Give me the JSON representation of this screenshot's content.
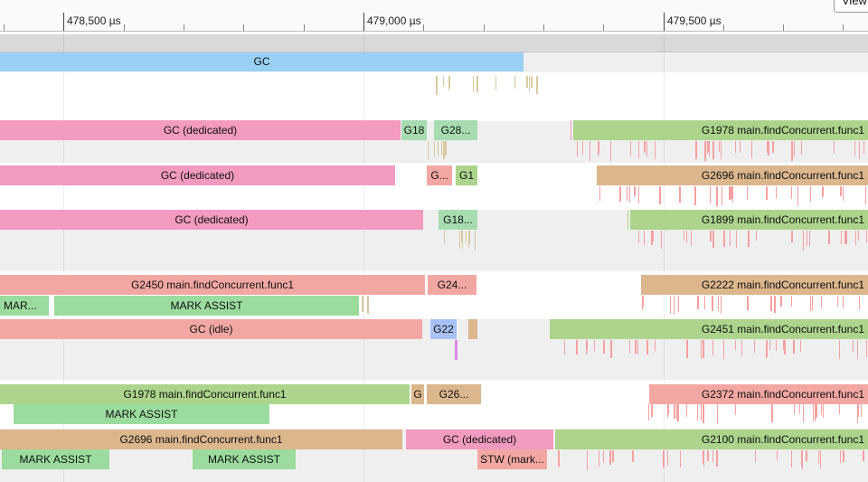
{
  "ruler": {
    "ticks": [
      "478,500 µs",
      "479,000 µs",
      "479,500 µs"
    ],
    "view_button": "View"
  },
  "colors": {
    "gc": "#9ad0f5",
    "pink": "#f29ac0",
    "green": "#acd48c",
    "teal": "#a6dcb0",
    "salmon": "#f3a7a3",
    "tan": "#dcb68c",
    "mark_assist": "#9bdc9e",
    "blue": "#a9c2f5",
    "marker_pink": "#f5a0a0",
    "marker_magenta": "#d98be8"
  },
  "gc_row": {
    "gc_label": "GC"
  },
  "rows": [
    {
      "main": [
        "GC (dedicated)",
        "G18",
        "G28...",
        "G1978 main.findConcurrent.func1"
      ]
    },
    {
      "main": [
        "GC (dedicated)",
        "G...",
        "G1",
        "G2696 main.findConcurrent.func1"
      ]
    },
    {
      "main": [
        "GC (dedicated)",
        "G18...",
        "G1899 main.findConcurrent.func1"
      ]
    },
    {
      "main": [
        "G2450 main.findConcurrent.func1",
        "G24...",
        "G2222 main.findConcurrent.func1"
      ],
      "sub": [
        "MAR...",
        "MARK ASSIST"
      ]
    },
    {
      "main": [
        "GC (idle)",
        "G22",
        "G2451 main.findConcurrent.func1"
      ]
    },
    {
      "main": [
        "G1978 main.findConcurrent.func1",
        "G",
        "G26...",
        "G2372 main.findConcurrent.func1"
      ],
      "sub": [
        "MARK ASSIST"
      ]
    },
    {
      "main": [
        "G2696 main.findConcurrent.func1",
        "GC (dedicated)",
        "G2100 main.findConcurrent.func1"
      ],
      "sub": [
        "MARK ASSIST",
        "MARK ASSIST",
        "STW (mark..."
      ]
    }
  ]
}
